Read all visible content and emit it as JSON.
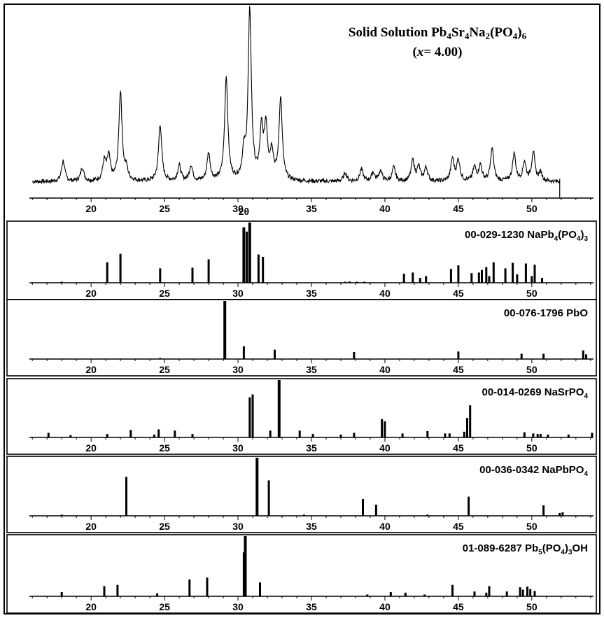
{
  "chart_data": [
    {
      "type": "line",
      "title_main": "Solid Solution Pb",
      "title_parts": [
        {
          "text": "Solid Solution Pb",
          "sub": false
        },
        {
          "text": "4",
          "sub": true
        },
        {
          "text": "Sr",
          "sub": false
        },
        {
          "text": "4",
          "sub": true
        },
        {
          "text": "Na",
          "sub": false
        },
        {
          "text": "2",
          "sub": true
        },
        {
          "text": "(PO",
          "sub": false
        },
        {
          "text": "4",
          "sub": true
        },
        {
          "text": ")",
          "sub": false
        },
        {
          "text": "6",
          "sub": true
        }
      ],
      "subtitle_parts": [
        {
          "text": "(",
          "italic": false
        },
        {
          "text": "x",
          "italic": true
        },
        {
          "text": "= 4.00)",
          "italic": false
        }
      ],
      "xlabel": "2θ",
      "xlim": [
        15.8,
        54.2
      ],
      "ylim": [
        0,
        100
      ],
      "xticks": [
        20,
        25,
        30,
        35,
        40,
        45,
        50
      ],
      "baseline": 3,
      "peaks": [
        {
          "x": 18.1,
          "y": 12
        },
        {
          "x": 19.4,
          "y": 8
        },
        {
          "x": 20.9,
          "y": 11
        },
        {
          "x": 21.2,
          "y": 14
        },
        {
          "x": 22.0,
          "y": 52
        },
        {
          "x": 22.4,
          "y": 6
        },
        {
          "x": 24.7,
          "y": 33
        },
        {
          "x": 26.0,
          "y": 9
        },
        {
          "x": 26.8,
          "y": 9
        },
        {
          "x": 28.0,
          "y": 16
        },
        {
          "x": 29.2,
          "y": 60
        },
        {
          "x": 30.4,
          "y": 14
        },
        {
          "x": 30.8,
          "y": 98
        },
        {
          "x": 31.6,
          "y": 28
        },
        {
          "x": 31.9,
          "y": 30
        },
        {
          "x": 32.3,
          "y": 16
        },
        {
          "x": 32.9,
          "y": 48
        },
        {
          "x": 37.3,
          "y": 5
        },
        {
          "x": 38.4,
          "y": 7
        },
        {
          "x": 39.2,
          "y": 5
        },
        {
          "x": 39.7,
          "y": 6
        },
        {
          "x": 40.6,
          "y": 8
        },
        {
          "x": 41.9,
          "y": 12
        },
        {
          "x": 42.3,
          "y": 8
        },
        {
          "x": 42.8,
          "y": 8
        },
        {
          "x": 44.6,
          "y": 13
        },
        {
          "x": 45.0,
          "y": 12
        },
        {
          "x": 46.1,
          "y": 8
        },
        {
          "x": 46.5,
          "y": 9
        },
        {
          "x": 47.3,
          "y": 19
        },
        {
          "x": 48.8,
          "y": 16
        },
        {
          "x": 49.5,
          "y": 11
        },
        {
          "x": 50.1,
          "y": 17
        },
        {
          "x": 50.6,
          "y": 5
        }
      ]
    },
    {
      "type": "bar",
      "label_parts": [
        {
          "text": "00-029-1230 NaPb",
          "sub": false
        },
        {
          "text": "4",
          "sub": true
        },
        {
          "text": "(PO",
          "sub": false
        },
        {
          "text": "4",
          "sub": true
        },
        {
          "text": ")",
          "sub": false
        },
        {
          "text": "3",
          "sub": true
        }
      ],
      "xlim": [
        15.8,
        54.2
      ],
      "ylim": [
        0,
        100
      ],
      "xticks": [
        20,
        25,
        30,
        35,
        40,
        45,
        50
      ],
      "x": [
        18.0,
        21.1,
        22.0,
        24.7,
        26.9,
        28.0,
        30.4,
        30.6,
        30.8,
        31.4,
        31.7,
        37.3,
        37.6,
        38.1,
        38.6,
        41.3,
        41.9,
        42.4,
        42.8,
        44.5,
        45.0,
        45.9,
        46.4,
        46.6,
        46.9,
        47.1,
        47.4,
        48.2,
        48.7,
        49.0,
        49.6,
        50.0,
        50.2,
        50.7
      ],
      "y": [
        1,
        34,
        48,
        24,
        25,
        39,
        92,
        85,
        100,
        47,
        43,
        1,
        2,
        1,
        1,
        15,
        17,
        8,
        11,
        23,
        29,
        16,
        17,
        21,
        26,
        11,
        34,
        24,
        33,
        14,
        32,
        11,
        30,
        8
      ]
    },
    {
      "type": "bar",
      "label_parts": [
        {
          "text": "00-076-1796 PbO",
          "sub": false
        }
      ],
      "xlim": [
        15.8,
        54.2
      ],
      "ylim": [
        0,
        100
      ],
      "xticks": [
        20,
        25,
        30,
        35,
        40,
        45,
        50
      ],
      "x": [
        24.7,
        29.1,
        30.4,
        32.5,
        37.9,
        45.0,
        49.3,
        50.8,
        53.5,
        53.7
      ],
      "y": [
        1,
        100,
        22,
        16,
        12,
        13,
        9,
        9,
        15,
        8
      ]
    },
    {
      "type": "bar",
      "label_parts": [
        {
          "text": "00-014-0269 NaSrPO",
          "sub": false
        },
        {
          "text": "4",
          "sub": true
        }
      ],
      "xlim": [
        15.8,
        54.2
      ],
      "ylim": [
        0,
        100
      ],
      "xticks": [
        20,
        25,
        30,
        35,
        40,
        45,
        50
      ],
      "x": [
        17.1,
        18.6,
        21.1,
        22.7,
        24.3,
        24.6,
        25.7,
        26.9,
        30.8,
        31.0,
        32.2,
        32.8,
        34.2,
        35.1,
        37.0,
        37.9,
        39.8,
        40.0,
        41.2,
        42.9,
        44.1,
        44.4,
        45.4,
        45.6,
        45.8,
        49.5,
        50.1,
        50.4,
        50.6,
        51.1,
        52.5,
        54.1
      ],
      "y": [
        8,
        4,
        6,
        13,
        5,
        14,
        12,
        6,
        70,
        75,
        12,
        100,
        12,
        6,
        5,
        8,
        32,
        28,
        7,
        11,
        7,
        7,
        10,
        34,
        56,
        9,
        7,
        6,
        6,
        5,
        5,
        8
      ]
    },
    {
      "type": "bar",
      "label_parts": [
        {
          "text": "00-036-0342 NaPbPO",
          "sub": false
        },
        {
          "text": "4",
          "sub": true
        }
      ],
      "xlim": [
        15.8,
        54.2
      ],
      "ylim": [
        0,
        100
      ],
      "xticks": [
        20,
        25,
        30,
        35,
        40,
        45,
        50
      ],
      "x": [
        18.0,
        22.4,
        31.3,
        32.1,
        34.5,
        38.5,
        39.4,
        42.9,
        45.7,
        50.8,
        51.9,
        52.1
      ],
      "y": [
        2,
        67,
        100,
        61,
        2,
        29,
        19,
        2,
        33,
        18,
        5,
        6
      ]
    },
    {
      "type": "bar",
      "label_parts": [
        {
          "text": "01-089-6287 Pb",
          "sub": false
        },
        {
          "text": "5",
          "sub": true
        },
        {
          "text": "(PO",
          "sub": false
        },
        {
          "text": "4",
          "sub": true
        },
        {
          "text": ")",
          "sub": false
        },
        {
          "text": "3",
          "sub": true
        },
        {
          "text": "OH",
          "sub": false
        }
      ],
      "xlim": [
        15.8,
        54.2
      ],
      "ylim": [
        0,
        100
      ],
      "xticks": [
        20,
        25,
        30,
        35,
        40,
        45,
        50
      ],
      "x": [
        18.0,
        20.9,
        21.8,
        24.5,
        26.7,
        27.9,
        30.4,
        30.5,
        31.5,
        38.8,
        40.4,
        41.4,
        42.7,
        44.6,
        46.1,
        46.9,
        47.1,
        48.3,
        49.2,
        49.4,
        49.7,
        49.9,
        50.2
      ],
      "y": [
        7,
        17,
        19,
        5,
        28,
        31,
        73,
        100,
        23,
        3,
        7,
        6,
        3,
        19,
        8,
        6,
        17,
        8,
        15,
        11,
        16,
        12,
        9
      ]
    }
  ]
}
